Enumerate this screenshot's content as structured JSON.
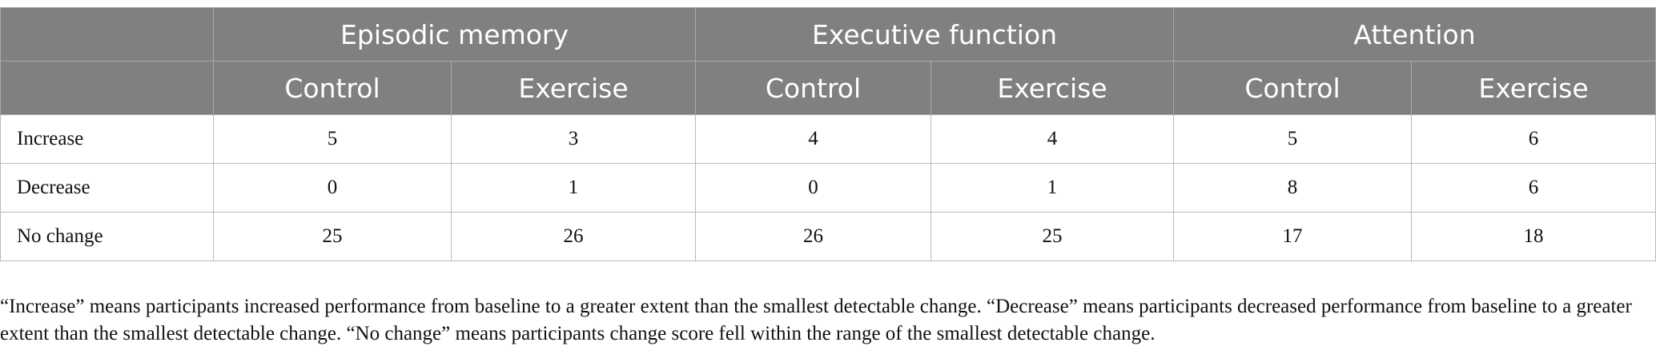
{
  "table": {
    "groups": [
      "Episodic memory",
      "Executive function",
      "Attention"
    ],
    "subheaders": [
      "Control",
      "Exercise",
      "Control",
      "Exercise",
      "Control",
      "Exercise"
    ],
    "rows": [
      [
        "Increase",
        "5",
        "3",
        "4",
        "4",
        "5",
        "6"
      ],
      [
        "Decrease",
        "0",
        "1",
        "0",
        "1",
        "8",
        "6"
      ],
      [
        "No change",
        "25",
        "26",
        "26",
        "25",
        "17",
        "18"
      ]
    ]
  },
  "footnote": "“Increase” means participants increased performance from baseline to a greater extent than the smallest detectable change. “Decrease” means participants decreased performance from baseline to a greater extent than the smallest detectable change. “No change” means participants change score fell within the range of the smallest detectable change."
}
